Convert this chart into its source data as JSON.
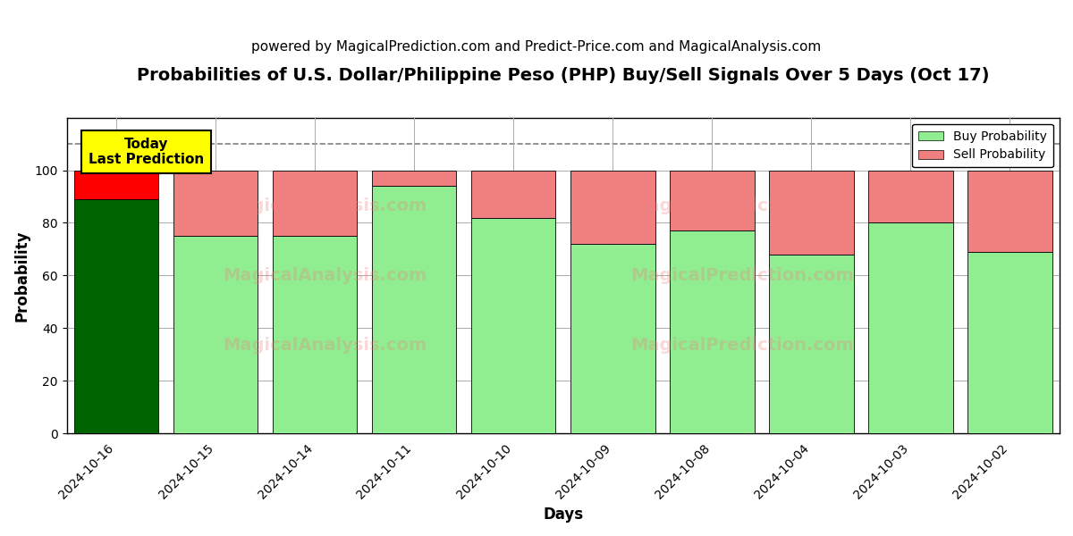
{
  "title": "Probabilities of U.S. Dollar/Philippine Peso (PHP) Buy/Sell Signals Over 5 Days (Oct 17)",
  "subtitle": "powered by MagicalPrediction.com and Predict-Price.com and MagicalAnalysis.com",
  "xlabel": "Days",
  "ylabel": "Probability",
  "dates": [
    "2024-10-16",
    "2024-10-15",
    "2024-10-14",
    "2024-10-11",
    "2024-10-10",
    "2024-10-09",
    "2024-10-08",
    "2024-10-04",
    "2024-10-03",
    "2024-10-02"
  ],
  "buy_values": [
    89,
    75,
    75,
    94,
    82,
    72,
    77,
    68,
    80,
    69
  ],
  "sell_values": [
    11,
    25,
    25,
    6,
    18,
    28,
    23,
    32,
    20,
    31
  ],
  "today_bar_buy_color": "#006400",
  "today_bar_sell_color": "#FF0000",
  "normal_bar_buy_color": "#90EE90",
  "normal_bar_sell_color": "#F08080",
  "bar_edge_color": "#000000",
  "dashed_line_y": 110,
  "ylim": [
    0,
    120
  ],
  "yticks": [
    0,
    20,
    40,
    60,
    80,
    100
  ],
  "legend_buy_color": "#90EE90",
  "legend_sell_color": "#F08080",
  "today_label_bg": "#FFFF00",
  "today_label_text": "Today\nLast Prediction",
  "title_fontsize": 14,
  "subtitle_fontsize": 11,
  "axis_label_fontsize": 12,
  "tick_fontsize": 10,
  "grid_color": "#aaaaaa",
  "background_color": "#ffffff",
  "bar_width": 0.85
}
